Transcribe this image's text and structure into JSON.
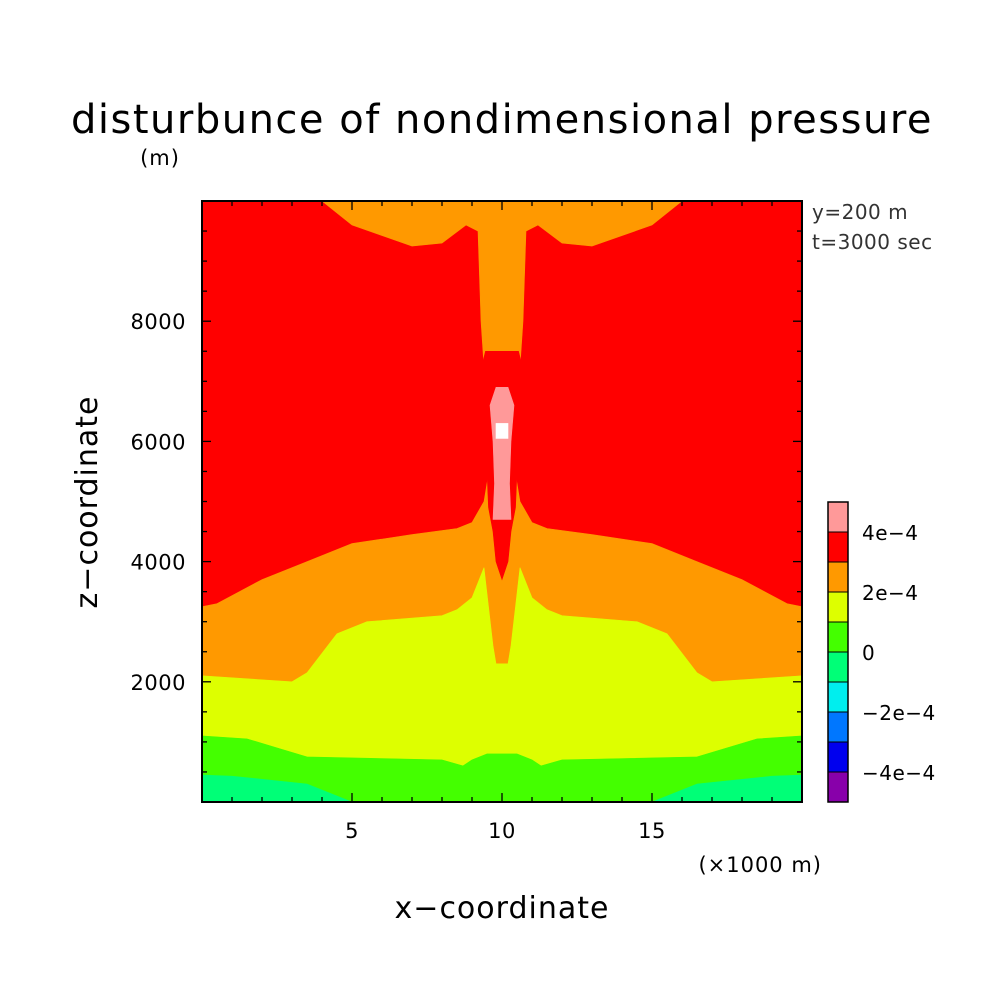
{
  "chart_data": {
    "type": "contour",
    "title": "disturbunce of nondimensional pressure",
    "xlabel": "x−coordinate",
    "ylabel": "z−coordinate",
    "yunit": "(m)",
    "xunit": "(×1000 m)",
    "xlim": [
      0,
      20
    ],
    "ylim": [
      0,
      10000
    ],
    "xticks": [
      5,
      10,
      15
    ],
    "yticks": [
      2000,
      4000,
      6000,
      8000
    ],
    "annotations": [
      "y=200 m",
      "t=3000 sec"
    ],
    "colorbar": {
      "levels": [
        -0.0005,
        -0.0004,
        -0.0003,
        -0.0002,
        -0.0001,
        0,
        0.0001,
        0.0002,
        0.0003,
        0.0004,
        0.0005
      ],
      "colors": [
        "#8800aa",
        "#0000ee",
        "#0077ff",
        "#00eeee",
        "#00ff77",
        "#44ff00",
        "#ddff00",
        "#ff9900",
        "#ff0000",
        "#ff9999"
      ],
      "tick_labels": [
        {
          "value": -0.0004,
          "label": "−4e−4"
        },
        {
          "value": -0.0002,
          "label": "−2e−4"
        },
        {
          "value": 0,
          "label": "0"
        },
        {
          "value": 0.0002,
          "label": "2e−4"
        },
        {
          "value": 0.0004,
          "label": "4e−4"
        }
      ]
    },
    "regions": [
      {
        "level": "3e-4 to 4e-4",
        "color": "#ff0000",
        "points": [
          [
            0,
            0
          ],
          [
            20,
            0
          ],
          [
            20,
            10000
          ],
          [
            0,
            10000
          ]
        ]
      },
      {
        "level": "2e-4 to 3e-4",
        "color": "#ff9900",
        "points": [
          [
            0,
            0
          ],
          [
            20,
            0
          ],
          [
            20,
            3250
          ],
          [
            19.5,
            3300
          ],
          [
            18,
            3700
          ],
          [
            16.5,
            4000
          ],
          [
            15,
            4300
          ],
          [
            13,
            4450
          ],
          [
            11.5,
            4550
          ],
          [
            11,
            4650
          ],
          [
            10.6,
            5000
          ],
          [
            10.4,
            5600
          ],
          [
            10.35,
            6200
          ],
          [
            10.4,
            6900
          ],
          [
            10.6,
            7250
          ],
          [
            10.7,
            8000
          ],
          [
            10.8,
            9500
          ],
          [
            11.2,
            9600
          ],
          [
            12,
            9300
          ],
          [
            13,
            9250
          ],
          [
            15,
            9600
          ],
          [
            16,
            10000
          ],
          [
            4,
            10000
          ],
          [
            5,
            9600
          ],
          [
            7,
            9250
          ],
          [
            8,
            9300
          ],
          [
            8.8,
            9600
          ],
          [
            9.2,
            9500
          ],
          [
            9.3,
            8000
          ],
          [
            9.4,
            7250
          ],
          [
            9.6,
            6900
          ],
          [
            9.65,
            6200
          ],
          [
            9.6,
            5600
          ],
          [
            9.4,
            5000
          ],
          [
            9,
            4650
          ],
          [
            8.5,
            4550
          ],
          [
            7,
            4450
          ],
          [
            5,
            4300
          ],
          [
            3.5,
            4000
          ],
          [
            2,
            3700
          ],
          [
            0.5,
            3300
          ],
          [
            0,
            3250
          ]
        ]
      },
      {
        "level": "3e-4 to 4e-4",
        "color": "#ff0000",
        "points": [
          [
            9.45,
            7500
          ],
          [
            10.55,
            7500
          ],
          [
            10.65,
            7300
          ],
          [
            10.5,
            6900
          ],
          [
            10.4,
            6300
          ],
          [
            10.5,
            5500
          ],
          [
            10.45,
            4900
          ],
          [
            10.3,
            4500
          ],
          [
            10.2,
            4000
          ],
          [
            10,
            3700
          ],
          [
            9.8,
            4000
          ],
          [
            9.7,
            4500
          ],
          [
            9.55,
            4900
          ],
          [
            9.5,
            5500
          ],
          [
            9.6,
            6300
          ],
          [
            9.5,
            6900
          ],
          [
            9.35,
            7300
          ]
        ]
      },
      {
        "level": "1e-4 to 2e-4",
        "color": "#ddff00",
        "points": [
          [
            0,
            0
          ],
          [
            20,
            0
          ],
          [
            20,
            2100
          ],
          [
            17,
            2000
          ],
          [
            16.5,
            2150
          ],
          [
            15.5,
            2800
          ],
          [
            14.5,
            3000
          ],
          [
            12,
            3100
          ],
          [
            11.5,
            3200
          ],
          [
            11,
            3400
          ],
          [
            10.6,
            3900
          ],
          [
            10.3,
            2600
          ],
          [
            10.2,
            2300
          ],
          [
            9.8,
            2300
          ],
          [
            9.7,
            2600
          ],
          [
            9.4,
            3900
          ],
          [
            9,
            3400
          ],
          [
            8.5,
            3200
          ],
          [
            8,
            3100
          ],
          [
            5.5,
            3000
          ],
          [
            4.5,
            2800
          ],
          [
            3.5,
            2150
          ],
          [
            3,
            2000
          ],
          [
            0,
            2100
          ]
        ]
      },
      {
        "level": "0 to 1e-4",
        "color": "#44ff00",
        "points": [
          [
            0,
            0
          ],
          [
            20,
            0
          ],
          [
            20,
            1100
          ],
          [
            18.5,
            1050
          ],
          [
            17.5,
            900
          ],
          [
            16.5,
            750
          ],
          [
            12,
            700
          ],
          [
            11.3,
            600
          ],
          [
            11,
            700
          ],
          [
            10.5,
            800
          ],
          [
            9.5,
            800
          ],
          [
            9,
            700
          ],
          [
            8.7,
            600
          ],
          [
            8,
            700
          ],
          [
            3.5,
            750
          ],
          [
            2.5,
            900
          ],
          [
            1.5,
            1050
          ],
          [
            0,
            1100
          ]
        ]
      },
      {
        "level": "-1e-4 to 0",
        "color": "#00ff77",
        "points": [
          [
            0,
            0
          ],
          [
            20,
            0
          ],
          [
            20,
            450
          ],
          [
            19,
            430
          ],
          [
            16.5,
            300
          ],
          [
            15,
            0
          ],
          [
            5,
            0
          ],
          [
            3.5,
            300
          ],
          [
            1,
            430
          ],
          [
            0,
            450
          ]
        ]
      },
      {
        "level": "4e-4 to 5e-4",
        "color": "#ff9999",
        "points": [
          [
            9.7,
            4700
          ],
          [
            10.3,
            4700
          ],
          [
            10.25,
            5300
          ],
          [
            10.3,
            6000
          ],
          [
            10.4,
            6600
          ],
          [
            10.2,
            6900
          ],
          [
            9.8,
            6900
          ],
          [
            9.6,
            6600
          ],
          [
            9.7,
            6000
          ],
          [
            9.75,
            5300
          ]
        ]
      },
      {
        "level": "above 5e-4",
        "color": "#ffffff",
        "points": [
          [
            9.8,
            6050
          ],
          [
            10.2,
            6050
          ],
          [
            10.2,
            6300
          ],
          [
            9.8,
            6300
          ]
        ]
      }
    ]
  }
}
